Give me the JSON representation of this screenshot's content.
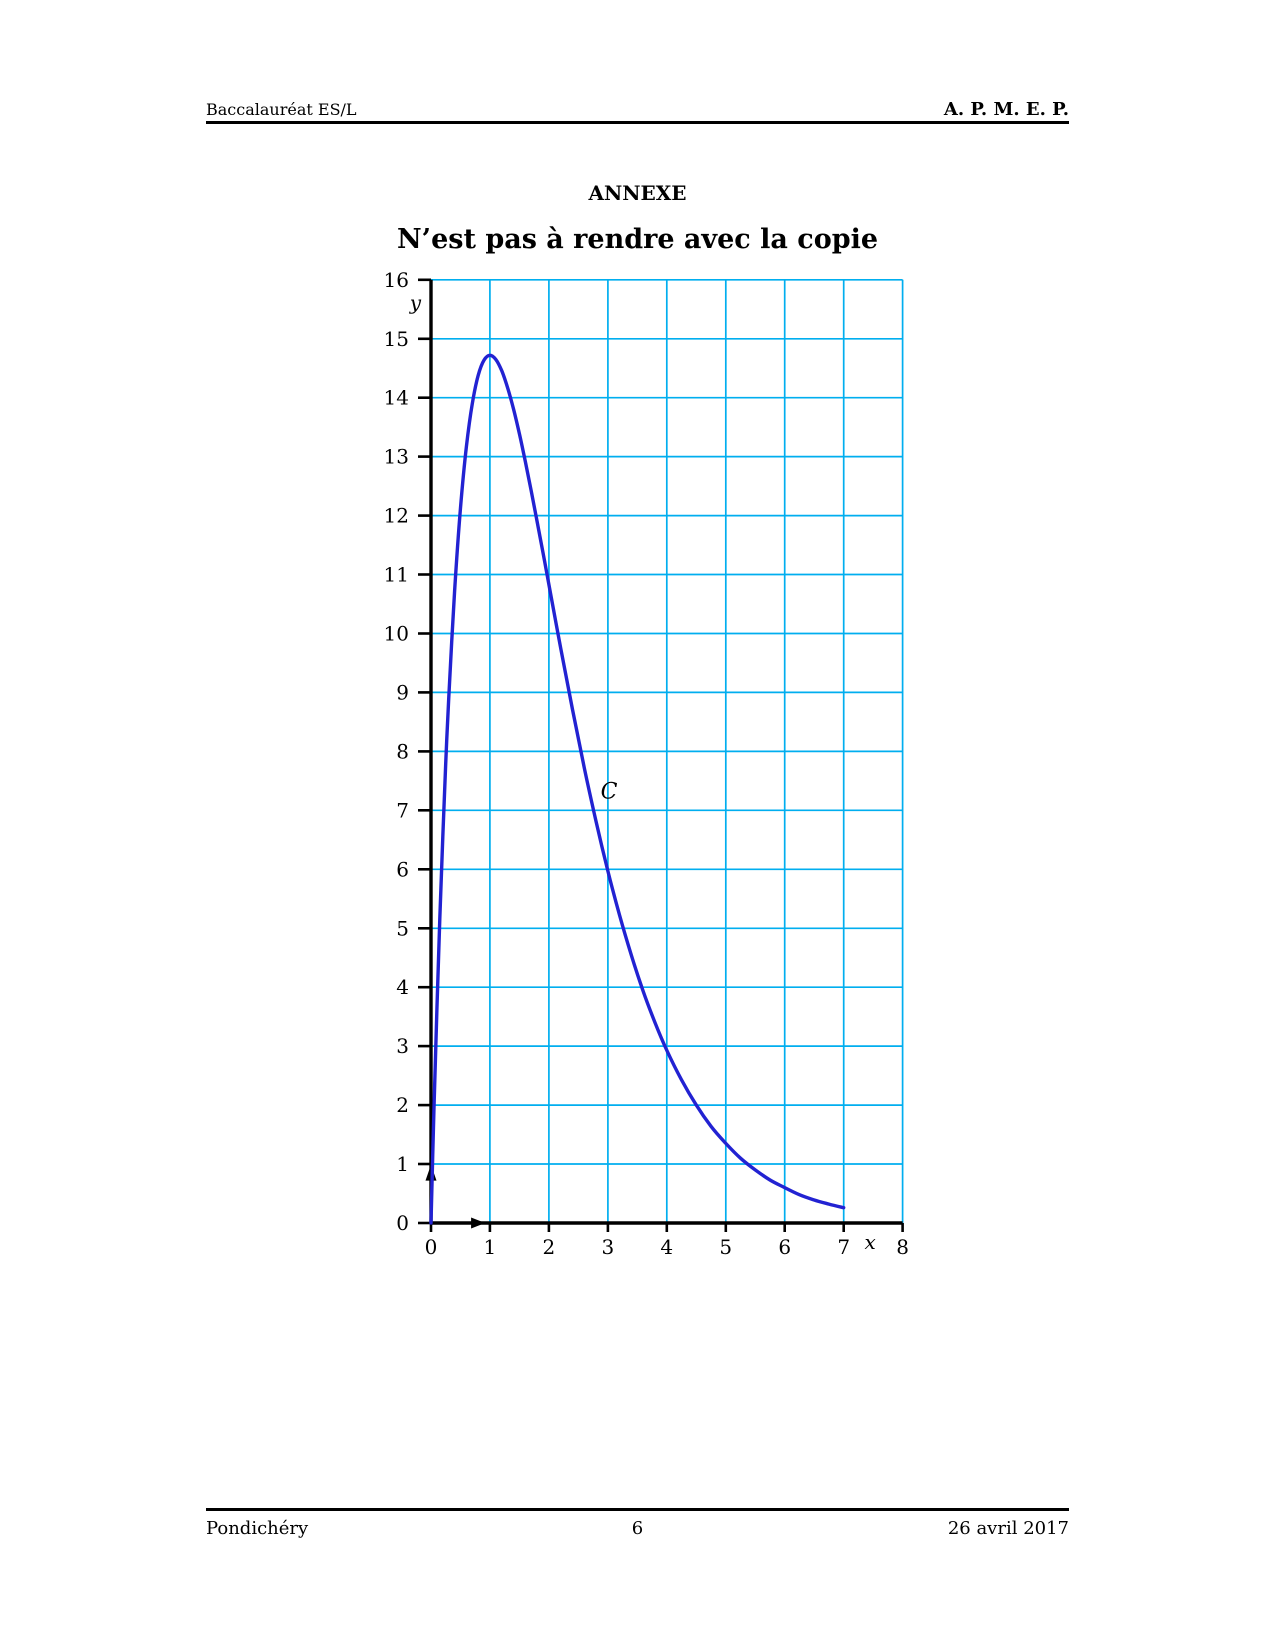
{
  "page": {
    "background": "#ffffff"
  },
  "header": {
    "left": "Baccalauréat ES/L",
    "right": "A. P. M. E. P."
  },
  "title": "ANNEXE",
  "subtitle": "N’est pas à rendre avec la copie",
  "footer": {
    "left": "Pondichéry",
    "page_number": "6",
    "right": "26 avril 2017"
  },
  "chart_data": {
    "type": "line",
    "title": "",
    "xlabel": "x",
    "ylabel": "y",
    "xlim": [
      0,
      8
    ],
    "ylim": [
      0,
      16
    ],
    "xticks": [
      0,
      1,
      2,
      3,
      4,
      5,
      6,
      7,
      8
    ],
    "yticks": [
      0,
      1,
      2,
      3,
      4,
      5,
      6,
      7,
      8,
      9,
      10,
      11,
      12,
      13,
      14,
      15,
      16
    ],
    "grid": true,
    "legend": "none",
    "colors": {
      "grid": "#00AEEF",
      "curve": "#2222D2",
      "axis": "#000000",
      "tick_label": "#000000"
    },
    "curve_label": "C",
    "curve_label_pos": [
      3.02,
      7.2
    ],
    "series": [
      {
        "name": "C",
        "points": [
          [
            0,
            0
          ],
          [
            0.05,
            1.9
          ],
          [
            0.1,
            3.62
          ],
          [
            0.15,
            5.16
          ],
          [
            0.2,
            6.55
          ],
          [
            0.25,
            7.79
          ],
          [
            0.3,
            8.89
          ],
          [
            0.4,
            10.72
          ],
          [
            0.5,
            12.13
          ],
          [
            0.6,
            13.17
          ],
          [
            0.7,
            13.9
          ],
          [
            0.8,
            14.38
          ],
          [
            0.9,
            14.64
          ],
          [
            1,
            14.72
          ],
          [
            1.1,
            14.65
          ],
          [
            1.2,
            14.46
          ],
          [
            1.3,
            14.17
          ],
          [
            1.4,
            13.81
          ],
          [
            1.5,
            13.39
          ],
          [
            1.6,
            12.92
          ],
          [
            1.7,
            12.42
          ],
          [
            1.8,
            11.9
          ],
          [
            1.9,
            11.37
          ],
          [
            2,
            10.83
          ],
          [
            2.2,
            9.75
          ],
          [
            2.4,
            8.71
          ],
          [
            2.6,
            7.72
          ],
          [
            2.8,
            6.81
          ],
          [
            3,
            5.97
          ],
          [
            3.2,
            5.22
          ],
          [
            3.4,
            4.54
          ],
          [
            3.6,
            3.93
          ],
          [
            3.8,
            3.4
          ],
          [
            4,
            2.93
          ],
          [
            4.25,
            2.43
          ],
          [
            4.5,
            2
          ],
          [
            4.75,
            1.64
          ],
          [
            5,
            1.35
          ],
          [
            5.25,
            1.1
          ],
          [
            5.5,
            0.9
          ],
          [
            5.75,
            0.73
          ],
          [
            6,
            0.6
          ],
          [
            6.25,
            0.48
          ],
          [
            6.5,
            0.39
          ],
          [
            6.75,
            0.32
          ],
          [
            7,
            0.26
          ]
        ]
      }
    ]
  }
}
